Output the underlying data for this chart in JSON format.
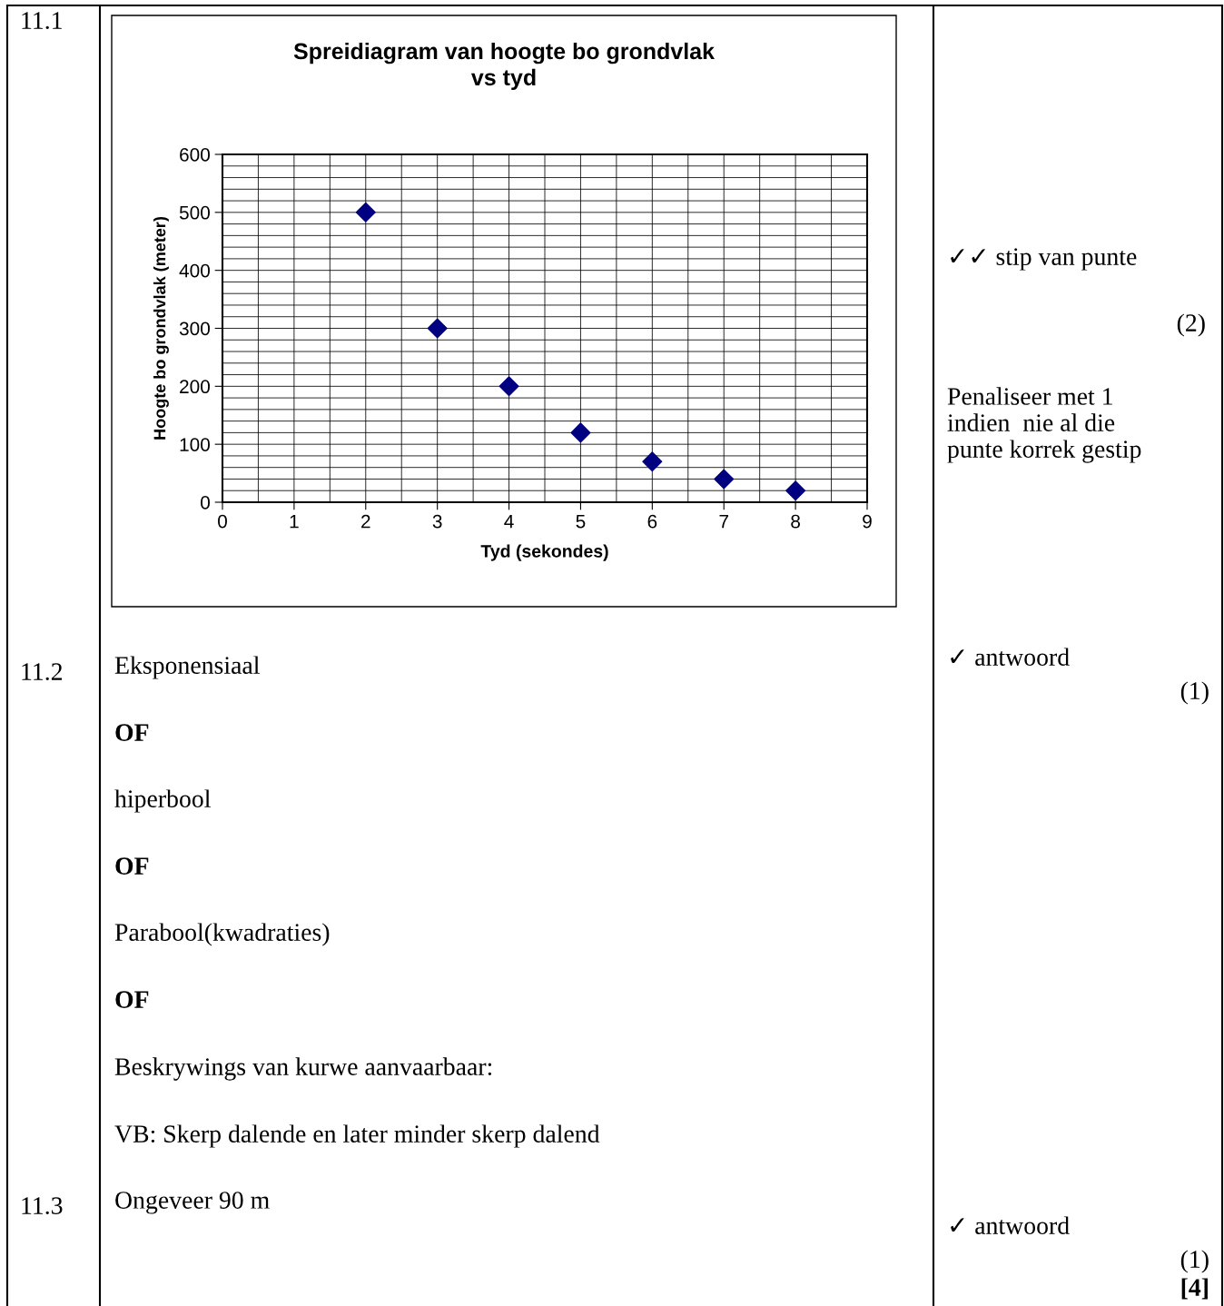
{
  "chart_data": {
    "type": "scatter",
    "title": "Spreidiagram van hoogte bo grondvlak\nvs tyd",
    "xlabel": "Tyd (sekondes)",
    "ylabel": "Hoogte bo grondvlak (meter)",
    "x": [
      2,
      3,
      4,
      5,
      6,
      7,
      8
    ],
    "series": [
      {
        "color": "#000080",
        "values": [
          500,
          300,
          200,
          120,
          70,
          40,
          20
        ]
      }
    ],
    "marker": "diamond",
    "grid": true,
    "legend": false,
    "xlim": [
      0,
      9
    ],
    "xticks": [
      0,
      1,
      2,
      3,
      4,
      5,
      6,
      7,
      8,
      9
    ],
    "ylim": [
      0,
      600
    ],
    "yticks": [
      0,
      100,
      200,
      300,
      400,
      500,
      600
    ],
    "annotations": [
      "11.1",
      "✓✓ stip van punte",
      "(2)",
      "Penaliseer met 1\nindien  nie al die\npunte korrek gestip",
      "11.2",
      "Eksponensiaal",
      "OF",
      "hiperbool",
      "OF",
      "Parabool(kwadraties)",
      "OF",
      "Beskrywings van kurwe aanvaarbaar:",
      "VB: Skerp dalende en later minder skerp dalend",
      "11.3",
      "Ongeveer 90 m",
      "✓ antwoord",
      "(1)",
      "✓ antwoord",
      "(1)",
      "[4]"
    ]
  }
}
